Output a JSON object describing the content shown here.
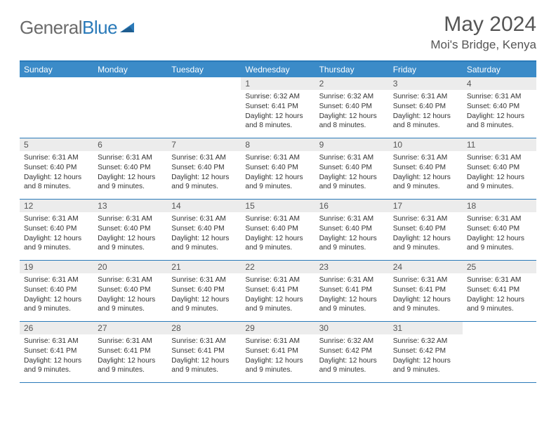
{
  "brand": {
    "part1": "General",
    "part2": "Blue"
  },
  "title": "May 2024",
  "location": "Moi's Bridge, Kenya",
  "colors": {
    "header_bg": "#3b8bc8",
    "border": "#2a7ab9",
    "daynum_bg": "#ececec",
    "text": "#555555"
  },
  "day_names": [
    "Sunday",
    "Monday",
    "Tuesday",
    "Wednesday",
    "Thursday",
    "Friday",
    "Saturday"
  ],
  "weeks": [
    [
      {
        "day": null
      },
      {
        "day": null
      },
      {
        "day": null
      },
      {
        "day": "1",
        "sunrise": "Sunrise: 6:32 AM",
        "sunset": "Sunset: 6:41 PM",
        "daylight": "Daylight: 12 hours and 8 minutes."
      },
      {
        "day": "2",
        "sunrise": "Sunrise: 6:32 AM",
        "sunset": "Sunset: 6:40 PM",
        "daylight": "Daylight: 12 hours and 8 minutes."
      },
      {
        "day": "3",
        "sunrise": "Sunrise: 6:31 AM",
        "sunset": "Sunset: 6:40 PM",
        "daylight": "Daylight: 12 hours and 8 minutes."
      },
      {
        "day": "4",
        "sunrise": "Sunrise: 6:31 AM",
        "sunset": "Sunset: 6:40 PM",
        "daylight": "Daylight: 12 hours and 8 minutes."
      }
    ],
    [
      {
        "day": "5",
        "sunrise": "Sunrise: 6:31 AM",
        "sunset": "Sunset: 6:40 PM",
        "daylight": "Daylight: 12 hours and 8 minutes."
      },
      {
        "day": "6",
        "sunrise": "Sunrise: 6:31 AM",
        "sunset": "Sunset: 6:40 PM",
        "daylight": "Daylight: 12 hours and 9 minutes."
      },
      {
        "day": "7",
        "sunrise": "Sunrise: 6:31 AM",
        "sunset": "Sunset: 6:40 PM",
        "daylight": "Daylight: 12 hours and 9 minutes."
      },
      {
        "day": "8",
        "sunrise": "Sunrise: 6:31 AM",
        "sunset": "Sunset: 6:40 PM",
        "daylight": "Daylight: 12 hours and 9 minutes."
      },
      {
        "day": "9",
        "sunrise": "Sunrise: 6:31 AM",
        "sunset": "Sunset: 6:40 PM",
        "daylight": "Daylight: 12 hours and 9 minutes."
      },
      {
        "day": "10",
        "sunrise": "Sunrise: 6:31 AM",
        "sunset": "Sunset: 6:40 PM",
        "daylight": "Daylight: 12 hours and 9 minutes."
      },
      {
        "day": "11",
        "sunrise": "Sunrise: 6:31 AM",
        "sunset": "Sunset: 6:40 PM",
        "daylight": "Daylight: 12 hours and 9 minutes."
      }
    ],
    [
      {
        "day": "12",
        "sunrise": "Sunrise: 6:31 AM",
        "sunset": "Sunset: 6:40 PM",
        "daylight": "Daylight: 12 hours and 9 minutes."
      },
      {
        "day": "13",
        "sunrise": "Sunrise: 6:31 AM",
        "sunset": "Sunset: 6:40 PM",
        "daylight": "Daylight: 12 hours and 9 minutes."
      },
      {
        "day": "14",
        "sunrise": "Sunrise: 6:31 AM",
        "sunset": "Sunset: 6:40 PM",
        "daylight": "Daylight: 12 hours and 9 minutes."
      },
      {
        "day": "15",
        "sunrise": "Sunrise: 6:31 AM",
        "sunset": "Sunset: 6:40 PM",
        "daylight": "Daylight: 12 hours and 9 minutes."
      },
      {
        "day": "16",
        "sunrise": "Sunrise: 6:31 AM",
        "sunset": "Sunset: 6:40 PM",
        "daylight": "Daylight: 12 hours and 9 minutes."
      },
      {
        "day": "17",
        "sunrise": "Sunrise: 6:31 AM",
        "sunset": "Sunset: 6:40 PM",
        "daylight": "Daylight: 12 hours and 9 minutes."
      },
      {
        "day": "18",
        "sunrise": "Sunrise: 6:31 AM",
        "sunset": "Sunset: 6:40 PM",
        "daylight": "Daylight: 12 hours and 9 minutes."
      }
    ],
    [
      {
        "day": "19",
        "sunrise": "Sunrise: 6:31 AM",
        "sunset": "Sunset: 6:40 PM",
        "daylight": "Daylight: 12 hours and 9 minutes."
      },
      {
        "day": "20",
        "sunrise": "Sunrise: 6:31 AM",
        "sunset": "Sunset: 6:40 PM",
        "daylight": "Daylight: 12 hours and 9 minutes."
      },
      {
        "day": "21",
        "sunrise": "Sunrise: 6:31 AM",
        "sunset": "Sunset: 6:40 PM",
        "daylight": "Daylight: 12 hours and 9 minutes."
      },
      {
        "day": "22",
        "sunrise": "Sunrise: 6:31 AM",
        "sunset": "Sunset: 6:41 PM",
        "daylight": "Daylight: 12 hours and 9 minutes."
      },
      {
        "day": "23",
        "sunrise": "Sunrise: 6:31 AM",
        "sunset": "Sunset: 6:41 PM",
        "daylight": "Daylight: 12 hours and 9 minutes."
      },
      {
        "day": "24",
        "sunrise": "Sunrise: 6:31 AM",
        "sunset": "Sunset: 6:41 PM",
        "daylight": "Daylight: 12 hours and 9 minutes."
      },
      {
        "day": "25",
        "sunrise": "Sunrise: 6:31 AM",
        "sunset": "Sunset: 6:41 PM",
        "daylight": "Daylight: 12 hours and 9 minutes."
      }
    ],
    [
      {
        "day": "26",
        "sunrise": "Sunrise: 6:31 AM",
        "sunset": "Sunset: 6:41 PM",
        "daylight": "Daylight: 12 hours and 9 minutes."
      },
      {
        "day": "27",
        "sunrise": "Sunrise: 6:31 AM",
        "sunset": "Sunset: 6:41 PM",
        "daylight": "Daylight: 12 hours and 9 minutes."
      },
      {
        "day": "28",
        "sunrise": "Sunrise: 6:31 AM",
        "sunset": "Sunset: 6:41 PM",
        "daylight": "Daylight: 12 hours and 9 minutes."
      },
      {
        "day": "29",
        "sunrise": "Sunrise: 6:31 AM",
        "sunset": "Sunset: 6:41 PM",
        "daylight": "Daylight: 12 hours and 9 minutes."
      },
      {
        "day": "30",
        "sunrise": "Sunrise: 6:32 AM",
        "sunset": "Sunset: 6:42 PM",
        "daylight": "Daylight: 12 hours and 9 minutes."
      },
      {
        "day": "31",
        "sunrise": "Sunrise: 6:32 AM",
        "sunset": "Sunset: 6:42 PM",
        "daylight": "Daylight: 12 hours and 9 minutes."
      },
      {
        "day": null
      }
    ]
  ]
}
